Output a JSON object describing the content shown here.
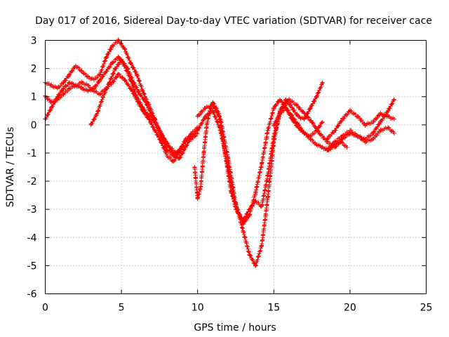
{
  "chart_data": {
    "type": "scatter",
    "title": "Day 017 of 2016, Sidereal Day-to-day VTEC variation (SDTVAR) for receiver cace",
    "xlabel": "GPS time / hours",
    "ylabel": "SDTVAR / TECUs",
    "xlim": [
      0,
      25
    ],
    "ylim": [
      -6,
      3
    ],
    "xticks": [
      "0",
      "5",
      "10",
      "15",
      "20",
      "25"
    ],
    "yticks": [
      "-6",
      "-5",
      "-4",
      "-3",
      "-2",
      "-1",
      "0",
      "1",
      "2",
      "3"
    ],
    "grid": true,
    "legend": "none",
    "marker": "plus",
    "color": "#ff0000",
    "series": [
      {
        "x": [
          0.0,
          0.4,
          0.8,
          1.2,
          1.6,
          2.0,
          2.4,
          2.8,
          3.2,
          3.6,
          4.0,
          4.4,
          4.8,
          5.2,
          5.6,
          6.0,
          6.4,
          6.8,
          7.2,
          7.6,
          8.0,
          8.4,
          8.8,
          9.2,
          9.6,
          10.0
        ],
        "y": [
          1.5,
          1.4,
          1.3,
          1.5,
          1.8,
          2.1,
          1.9,
          1.7,
          1.6,
          1.8,
          2.4,
          2.8,
          3.0,
          2.7,
          2.2,
          1.8,
          1.2,
          0.7,
          0.2,
          -0.4,
          -0.9,
          -1.1,
          -0.9,
          -0.6,
          -0.3,
          -0.1
        ]
      },
      {
        "x": [
          0.0,
          0.4,
          0.8,
          1.2,
          1.6,
          2.0,
          2.4,
          2.8,
          3.2,
          3.6,
          4.0,
          4.4,
          4.8,
          5.2,
          5.6,
          6.0,
          6.4,
          6.8,
          7.2,
          7.6,
          8.0,
          8.4,
          8.8,
          9.2,
          9.6,
          10.0
        ],
        "y": [
          0.2,
          0.6,
          1.0,
          1.3,
          1.5,
          1.4,
          1.3,
          1.2,
          1.3,
          1.6,
          1.9,
          2.2,
          2.4,
          2.1,
          1.6,
          1.0,
          0.6,
          0.3,
          0.1,
          -0.3,
          -0.7,
          -1.0,
          -1.2,
          -0.8,
          -0.4,
          -0.2
        ]
      },
      {
        "x": [
          0.0,
          0.4,
          0.8,
          1.2,
          1.6,
          2.0,
          2.4,
          2.8,
          3.2,
          3.6,
          4.0,
          4.4,
          4.8,
          5.2,
          5.6,
          6.0,
          6.4,
          6.8,
          7.2,
          7.6,
          8.0,
          8.4,
          8.8,
          9.2,
          9.6,
          10.0
        ],
        "y": [
          1.0,
          0.8,
          0.9,
          1.1,
          1.3,
          1.4,
          1.5,
          1.4,
          1.2,
          1.1,
          1.3,
          1.5,
          1.8,
          1.6,
          1.3,
          0.9,
          0.5,
          0.2,
          -0.2,
          -0.6,
          -1.1,
          -1.3,
          -1.0,
          -0.5,
          -0.5,
          -0.3
        ]
      },
      {
        "x": [
          3.0,
          3.4,
          3.8,
          4.2,
          4.6,
          5.0,
          5.4,
          5.8,
          6.2,
          6.6,
          7.0,
          7.4,
          7.8,
          8.2,
          8.6,
          9.0
        ],
        "y": [
          0.0,
          0.4,
          1.0,
          1.5,
          2.0,
          2.3,
          2.0,
          1.5,
          1.1,
          0.8,
          0.3,
          -0.1,
          -0.5,
          -0.8,
          -1.0,
          -0.8
        ]
      },
      {
        "x": [
          10.0,
          10.5,
          11.0,
          11.5,
          12.0,
          12.5,
          13.0,
          13.4,
          13.8,
          14.2,
          14.6,
          15.0,
          15.4,
          15.8,
          16.2,
          16.6,
          17.0,
          17.4,
          17.8,
          18.2
        ],
        "y": [
          0.3,
          0.6,
          0.7,
          0.2,
          -1.2,
          -2.8,
          -3.8,
          -4.6,
          -5.0,
          -4.3,
          -2.6,
          -0.6,
          0.5,
          0.9,
          0.6,
          0.3,
          0.2,
          0.6,
          1.0,
          1.5
        ]
      },
      {
        "x": [
          10.0,
          10.5,
          11.0,
          11.5,
          12.0,
          12.5,
          13.0,
          13.4,
          13.8,
          14.2,
          14.6,
          15.0,
          15.4,
          15.8,
          16.2,
          16.6,
          17.0,
          17.4,
          17.8,
          18.2,
          18.6,
          19.0,
          19.4,
          19.8
        ],
        "y": [
          -0.2,
          0.3,
          0.5,
          -0.2,
          -1.5,
          -3.0,
          -3.4,
          -3.0,
          -2.7,
          -2.9,
          -1.8,
          -0.4,
          0.4,
          0.6,
          0.2,
          -0.1,
          -0.3,
          -0.5,
          -0.7,
          -0.8,
          -0.9,
          -0.7,
          -0.6,
          -0.8
        ]
      },
      {
        "x": [
          9.8,
          10.0,
          10.2,
          10.4,
          10.6,
          10.8,
          11.0,
          11.4,
          11.8,
          12.2,
          12.6,
          13.0,
          13.4,
          13.8,
          14.2,
          14.6,
          15.0,
          15.4,
          15.8,
          16.2,
          16.6,
          17.0,
          17.4,
          17.8,
          18.2
        ],
        "y": [
          -1.5,
          -2.6,
          -2.2,
          -1.0,
          0.0,
          0.5,
          0.8,
          0.4,
          -1.0,
          -2.4,
          -3.0,
          -3.5,
          -3.2,
          -2.4,
          -1.4,
          -0.2,
          0.6,
          0.9,
          0.6,
          0.3,
          0.0,
          -0.3,
          -0.4,
          -0.2,
          0.1
        ]
      },
      {
        "x": [
          15.0,
          15.5,
          16.0,
          16.5,
          17.0,
          17.5,
          18.0,
          18.5,
          19.0,
          19.5,
          20.0,
          20.5,
          21.0,
          21.5,
          22.0,
          22.5,
          22.9
        ],
        "y": [
          0.0,
          0.5,
          0.9,
          0.7,
          0.4,
          0.1,
          -0.3,
          -0.6,
          -0.8,
          -0.5,
          -0.3,
          -0.4,
          -0.5,
          -0.3,
          0.1,
          0.5,
          0.9
        ]
      },
      {
        "x": [
          18.5,
          19.0,
          19.5,
          20.0,
          20.5,
          21.0,
          21.5,
          22.0,
          22.5,
          22.9
        ],
        "y": [
          -0.5,
          -0.2,
          0.2,
          0.5,
          0.3,
          0.0,
          0.1,
          0.4,
          0.3,
          0.2
        ]
      },
      {
        "x": [
          18.5,
          19.0,
          19.5,
          20.0,
          20.5,
          21.0,
          21.5,
          22.0,
          22.5,
          22.9
        ],
        "y": [
          -0.9,
          -0.6,
          -0.4,
          -0.2,
          -0.4,
          -0.6,
          -0.5,
          -0.2,
          -0.1,
          -0.3
        ]
      }
    ]
  }
}
